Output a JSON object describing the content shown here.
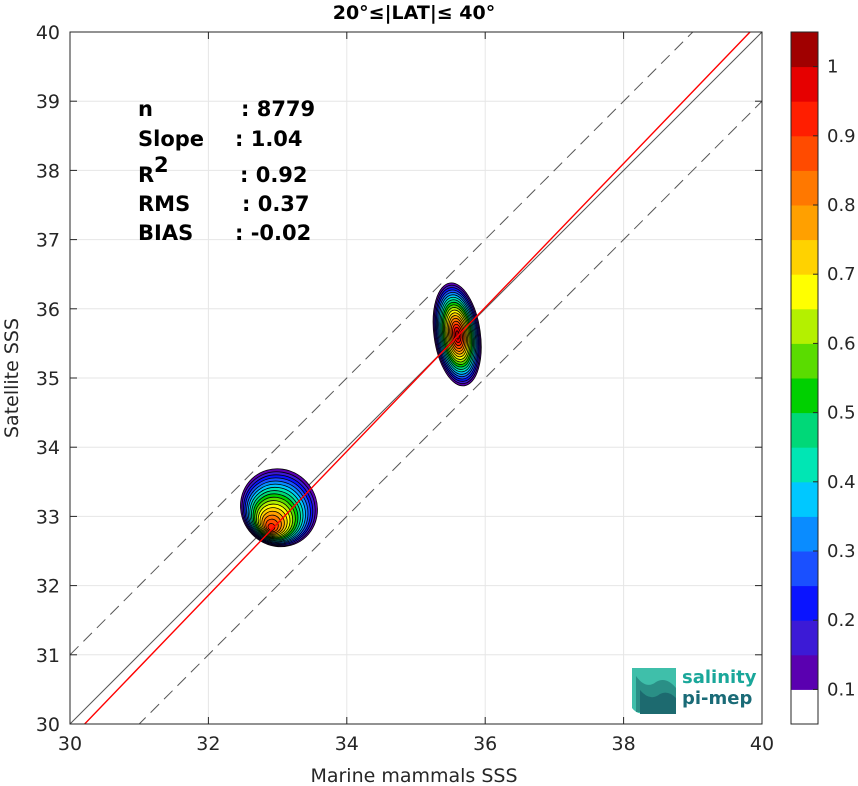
{
  "chart_data": {
    "type": "contour",
    "title": "20°≤|LAT|≤ 40°",
    "xlabel": "Marine mammals SSS",
    "ylabel": "Satellite SSS",
    "xlim": [
      30,
      40
    ],
    "ylim": [
      30,
      40
    ],
    "xticks": [
      "30",
      "32",
      "34",
      "36",
      "38",
      "40"
    ],
    "yticks": [
      "30",
      "31",
      "32",
      "33",
      "34",
      "35",
      "36",
      "37",
      "38",
      "39",
      "40"
    ],
    "grid": true,
    "stats": [
      {
        "label": "n",
        "value": ": 8779"
      },
      {
        "label": "Slope",
        "value": ": 1.04"
      },
      {
        "label": "R",
        "sup": "2",
        "value": ": 0.92"
      },
      {
        "label": "RMS",
        "value": ": 0.37"
      },
      {
        "label": "BIAS",
        "value": ": -0.02"
      }
    ],
    "reference_lines": [
      {
        "name": "1:1 line",
        "intercept": 0,
        "slope": 1,
        "color": "#555555"
      },
      {
        "name": "+1 offset",
        "intercept": 1,
        "slope": 1,
        "color": "#555555",
        "dash": true
      },
      {
        "name": "-1 offset",
        "intercept": -1,
        "slope": 1,
        "color": "#555555",
        "dash": true
      },
      {
        "name": "regression",
        "slope": 1.04,
        "passes_through": [
          35.5,
          35.5
        ],
        "color": "#ff0000"
      }
    ],
    "density_clusters": [
      {
        "center": [
          32.9,
          32.82
        ],
        "outer_x_range": [
          32.32,
          33.72
        ],
        "outer_y_range": [
          32.2,
          34.05
        ],
        "peak": 0.9
      },
      {
        "center": [
          35.6,
          35.62
        ],
        "outer_x_range": [
          35.26,
          35.93
        ],
        "outer_y_range": [
          34.88,
          36.38
        ],
        "peak": 1.0
      }
    ],
    "colorbar": {
      "ticks": [
        "0.1",
        "0.2",
        "0.3",
        "0.4",
        "0.5",
        "0.6",
        "0.7",
        "0.8",
        "0.9",
        "1"
      ],
      "range": [
        0,
        1
      ],
      "colors": [
        "#ffffff",
        "#5a00b0",
        "#3c1ad6",
        "#0a14ff",
        "#1a50ff",
        "#0a8cff",
        "#00c8ff",
        "#00e6b4",
        "#00d878",
        "#00d000",
        "#5adc00",
        "#b4f000",
        "#ffff00",
        "#ffd200",
        "#ffa000",
        "#ff7800",
        "#ff4b00",
        "#ff1e00",
        "#e60000",
        "#a00000"
      ]
    },
    "logo": {
      "line1": "salinity",
      "line2": "pi-mep"
    }
  }
}
